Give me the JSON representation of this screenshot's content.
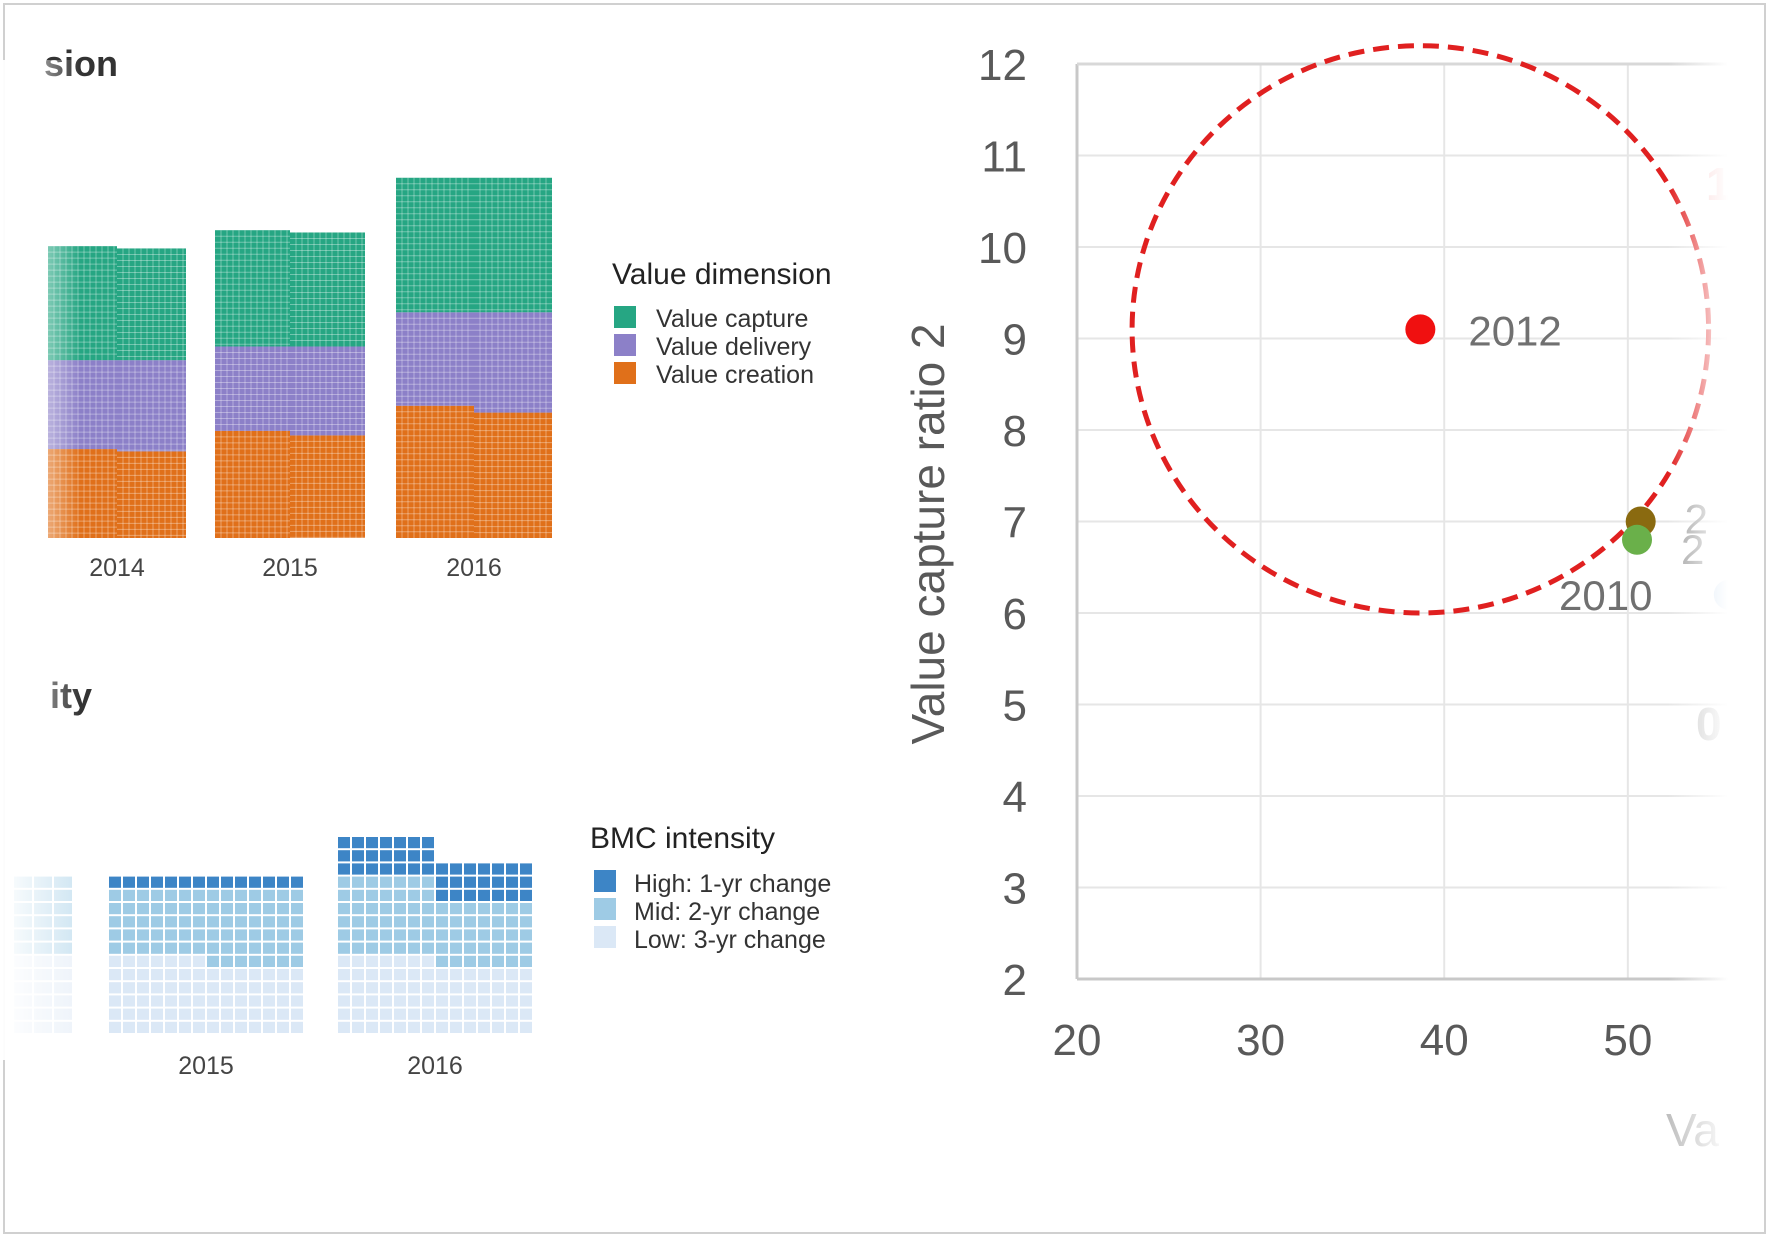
{
  "colors": {
    "value_capture": "#26a683",
    "value_delivery": "#8c80c8",
    "value_creation": "#e0701a",
    "bmc_high": "#3d85c6",
    "bmc_mid": "#9ecbe5",
    "bmc_low": "#dbe8f6",
    "circle": "#e02020",
    "point_2012": "#f01010",
    "point_olive": "#8a6a10",
    "point_green": "#6ab04a",
    "point_blue": "#c8ddf2"
  },
  "chart_data": [
    {
      "type": "bar",
      "stacked": true,
      "style": "waffle",
      "title": "sion",
      "categories": [
        "2014",
        "2015",
        "2016"
      ],
      "series": [
        {
          "name": "Value creation",
          "color_key": "value_creation",
          "values": [
            [
              19.5,
              19
            ],
            [
              23.5,
              22.5
            ],
            [
              29,
              27.5
            ]
          ]
        },
        {
          "name": "Value delivery",
          "color_key": "value_delivery",
          "values": [
            [
              19.5,
              20
            ],
            [
              18.5,
              19.5
            ],
            [
              20.5,
              22
            ]
          ]
        },
        {
          "name": "Value capture",
          "color_key": "value_capture",
          "values": [
            [
              25,
              24.5
            ],
            [
              25.5,
              25
            ],
            [
              29.5,
              29.5
            ]
          ]
        }
      ],
      "legend": {
        "title": "Value dimension",
        "placement": "right",
        "entries": [
          "Value capture",
          "Value delivery",
          "Value creation"
        ]
      }
    },
    {
      "type": "bar",
      "stacked": true,
      "style": "waffle",
      "title": "ity",
      "categories": [
        "2015",
        "2016"
      ],
      "series": [
        {
          "name": "Low: 3-yr change",
          "color_key": "bmc_low",
          "values": [
            [
              6,
              5
            ],
            [
              6,
              5
            ]
          ]
        },
        {
          "name": "Mid: 2-yr change",
          "color_key": "bmc_mid",
          "values": [
            [
              5,
              6
            ],
            [
              6,
              5
            ]
          ]
        },
        {
          "name": "High: 1-yr change",
          "color_key": "bmc_high",
          "values": [
            [
              1,
              1
            ],
            [
              3,
              3
            ]
          ]
        }
      ],
      "legend": {
        "title": "BMC intensity",
        "placement": "right",
        "entries": [
          "High: 1-yr change",
          "Mid: 2-yr change",
          "Low: 3-yr change"
        ]
      }
    },
    {
      "type": "scatter",
      "title": "",
      "xlabel": "Va",
      "ylabel": "Value capture ratio 2",
      "xlim": [
        20,
        56
      ],
      "ylim": [
        2,
        12
      ],
      "xticks": [
        "20",
        "30",
        "40",
        "50"
      ],
      "yticks": [
        "2",
        "3",
        "4",
        "5",
        "6",
        "7",
        "8",
        "9",
        "10",
        "11",
        "12"
      ],
      "grid": true,
      "points": [
        {
          "label": "2012",
          "x": 38.7,
          "y": 9.1,
          "color_key": "point_2012"
        },
        {
          "label": "2",
          "x": 50.7,
          "y": 7.0,
          "color_key": "point_olive"
        },
        {
          "label": "2",
          "x": 50.5,
          "y": 6.8,
          "color_key": "point_green"
        },
        {
          "label": "2010",
          "x": 50.5,
          "y": 6.8,
          "color_key": "point_green",
          "label_below": true
        },
        {
          "label": "",
          "x": 55.5,
          "y": 6.2,
          "color_key": "point_blue"
        }
      ],
      "circle": {
        "cx": 38.7,
        "cy": 9.1,
        "rx": 15.7,
        "ry": 3.1
      },
      "clipped_labels": [
        "1",
        "0"
      ]
    }
  ]
}
